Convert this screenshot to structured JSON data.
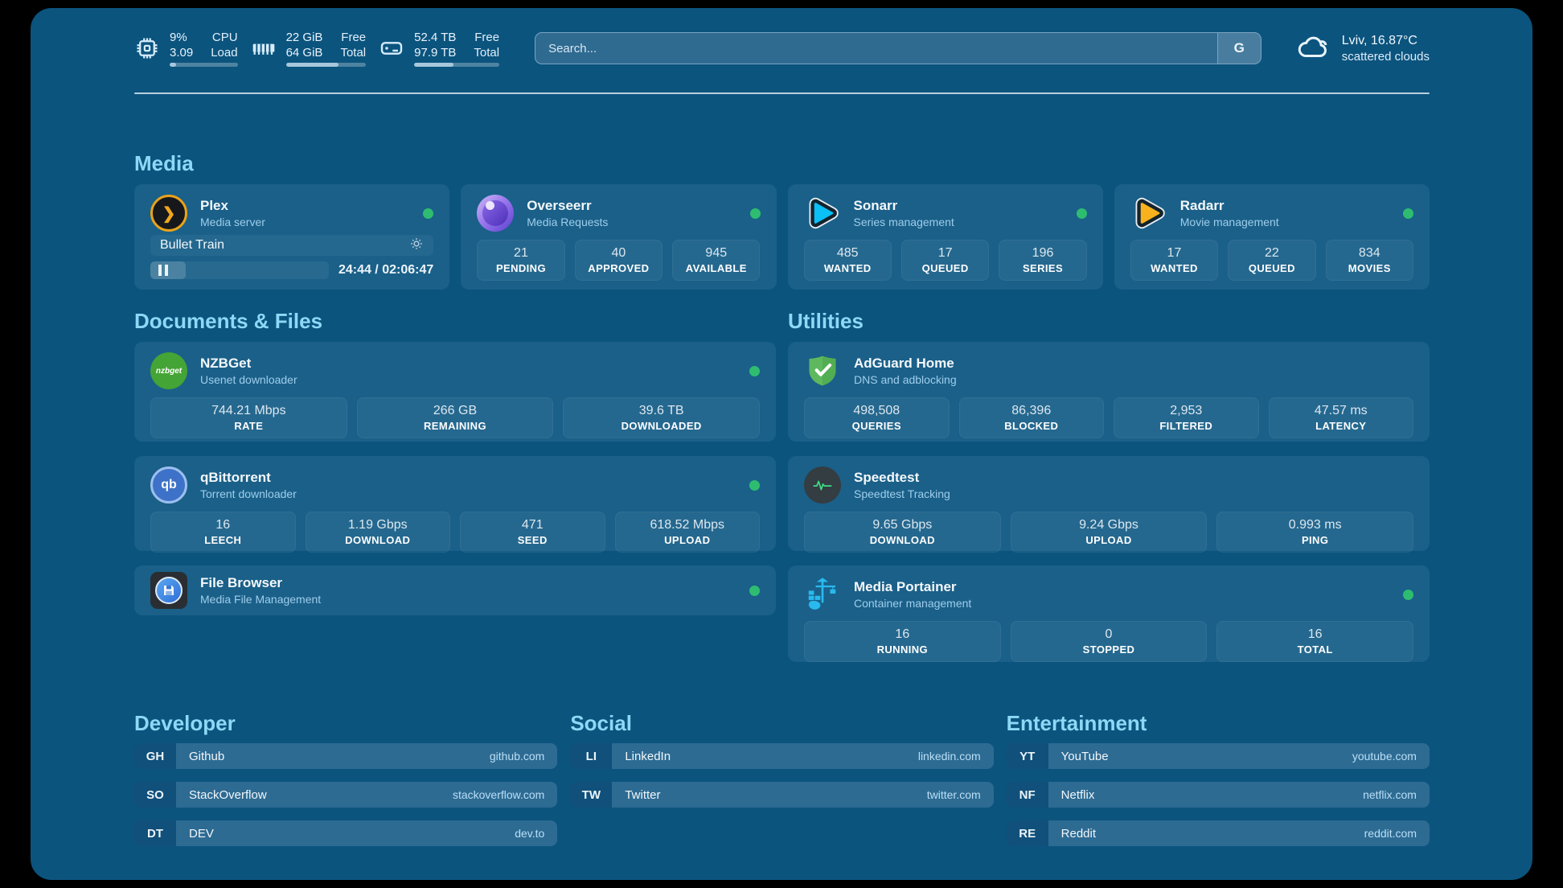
{
  "colors": {
    "background": "#0b547e",
    "accent_heading": "#8ed8f7",
    "status_online": "#2ebd70"
  },
  "header": {
    "stats": [
      {
        "name": "cpu",
        "value_top": "9%",
        "value_bottom": "3.09",
        "label_top": "CPU",
        "label_bottom": "Load",
        "progress_pct": 9
      },
      {
        "name": "memory",
        "value_top": "22 GiB",
        "value_bottom": "64 GiB",
        "label_top": "Free",
        "label_bottom": "Total",
        "progress_pct": 66
      },
      {
        "name": "storage",
        "value_top": "52.4 TB",
        "value_bottom": "97.9 TB",
        "label_top": "Free",
        "label_bottom": "Total",
        "progress_pct": 46
      }
    ],
    "search": {
      "placeholder": "Search...",
      "engine": "G"
    },
    "weather": {
      "location": "Lviv, 16.87°C",
      "condition": "scattered clouds"
    }
  },
  "media": {
    "title": "Media",
    "plex": {
      "title": "Plex",
      "subtitle": "Media server",
      "now_playing": "Bullet Train",
      "time": "24:44 / 02:06:47",
      "progress_pct": 20
    },
    "overseerr": {
      "title": "Overseerr",
      "subtitle": "Media Requests",
      "stats": [
        {
          "value": "21",
          "label": "PENDING"
        },
        {
          "value": "40",
          "label": "APPROVED"
        },
        {
          "value": "945",
          "label": "AVAILABLE"
        }
      ]
    },
    "sonarr": {
      "title": "Sonarr",
      "subtitle": "Series management",
      "stats": [
        {
          "value": "485",
          "label": "WANTED"
        },
        {
          "value": "17",
          "label": "QUEUED"
        },
        {
          "value": "196",
          "label": "SERIES"
        }
      ]
    },
    "radarr": {
      "title": "Radarr",
      "subtitle": "Movie management",
      "stats": [
        {
          "value": "17",
          "label": "WANTED"
        },
        {
          "value": "22",
          "label": "QUEUED"
        },
        {
          "value": "834",
          "label": "MOVIES"
        }
      ]
    }
  },
  "documents": {
    "title": "Documents & Files",
    "nzbget": {
      "title": "NZBGet",
      "subtitle": "Usenet downloader",
      "icon_text": "nzbget",
      "stats": [
        {
          "value": "744.21 Mbps",
          "label": "RATE"
        },
        {
          "value": "266 GB",
          "label": "REMAINING"
        },
        {
          "value": "39.6 TB",
          "label": "DOWNLOADED"
        }
      ]
    },
    "qbittorrent": {
      "title": "qBittorrent",
      "subtitle": "Torrent downloader",
      "icon_text": "qb",
      "stats": [
        {
          "value": "16",
          "label": "LEECH"
        },
        {
          "value": "1.19 Gbps",
          "label": "DOWNLOAD"
        },
        {
          "value": "471",
          "label": "SEED"
        },
        {
          "value": "618.52 Mbps",
          "label": "UPLOAD"
        }
      ]
    },
    "filebrowser": {
      "title": "File Browser",
      "subtitle": "Media File Management"
    }
  },
  "utilities": {
    "title": "Utilities",
    "adguard": {
      "title": "AdGuard Home",
      "subtitle": "DNS and adblocking",
      "stats": [
        {
          "value": "498,508",
          "label": "QUERIES"
        },
        {
          "value": "86,396",
          "label": "BLOCKED"
        },
        {
          "value": "2,953",
          "label": "FILTERED"
        },
        {
          "value": "47.57 ms",
          "label": "LATENCY"
        }
      ]
    },
    "speedtest": {
      "title": "Speedtest",
      "subtitle": "Speedtest Tracking",
      "stats": [
        {
          "value": "9.65 Gbps",
          "label": "DOWNLOAD"
        },
        {
          "value": "9.24 Gbps",
          "label": "UPLOAD"
        },
        {
          "value": "0.993 ms",
          "label": "PING"
        }
      ]
    },
    "portainer": {
      "title": "Media Portainer",
      "subtitle": "Container management",
      "stats": [
        {
          "value": "16",
          "label": "RUNNING"
        },
        {
          "value": "0",
          "label": "STOPPED"
        },
        {
          "value": "16",
          "label": "TOTAL"
        }
      ]
    }
  },
  "bookmarks": {
    "developer": {
      "title": "Developer",
      "items": [
        {
          "abbr": "GH",
          "name": "Github",
          "url": "github.com"
        },
        {
          "abbr": "SO",
          "name": "StackOverflow",
          "url": "stackoverflow.com"
        },
        {
          "abbr": "DT",
          "name": "DEV",
          "url": "dev.to"
        }
      ]
    },
    "social": {
      "title": "Social",
      "items": [
        {
          "abbr": "LI",
          "name": "LinkedIn",
          "url": "linkedin.com"
        },
        {
          "abbr": "TW",
          "name": "Twitter",
          "url": "twitter.com"
        }
      ]
    },
    "entertainment": {
      "title": "Entertainment",
      "items": [
        {
          "abbr": "YT",
          "name": "YouTube",
          "url": "youtube.com"
        },
        {
          "abbr": "NF",
          "name": "Netflix",
          "url": "netflix.com"
        },
        {
          "abbr": "RE",
          "name": "Reddit",
          "url": "reddit.com"
        }
      ]
    }
  }
}
